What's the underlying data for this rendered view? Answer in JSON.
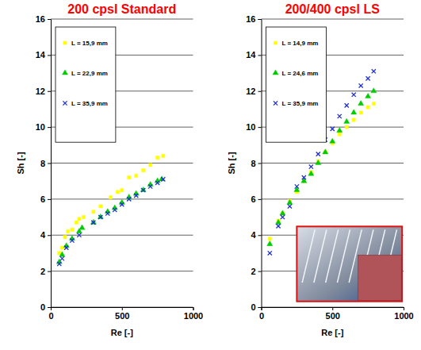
{
  "chart_data": [
    {
      "type": "scatter",
      "title": "200 cpsl Standard",
      "x_label": "Re [-]",
      "y_label": "Sh [-]",
      "xlim": [
        0,
        1000
      ],
      "xticks": [
        0,
        500,
        1000
      ],
      "ylim": [
        0,
        16
      ],
      "yticks": [
        0,
        2,
        4,
        6,
        8,
        10,
        12,
        14,
        16
      ],
      "grid": true,
      "legend": "top-left",
      "series": [
        {
          "name": "L = 15,9 mm",
          "color": "#ffff00",
          "marker": "square",
          "x": [
            60,
            80,
            100,
            120,
            150,
            180,
            200,
            230,
            300,
            350,
            420,
            470,
            500,
            550,
            600,
            650,
            700,
            750,
            790
          ],
          "values": [
            3.0,
            3.3,
            3.9,
            4.2,
            4.3,
            4.7,
            4.9,
            5.0,
            5.3,
            5.6,
            6.1,
            6.4,
            6.5,
            7.2,
            7.3,
            7.6,
            7.9,
            8.3,
            8.4
          ]
        },
        {
          "name": "L = 22,9 mm",
          "color": "#00cc00",
          "marker": "triangle",
          "x": [
            60,
            80,
            110,
            150,
            200,
            220,
            300,
            350,
            400,
            450,
            500,
            550,
            600,
            650,
            700,
            750,
            780
          ],
          "values": [
            2.5,
            2.9,
            3.4,
            3.8,
            4.2,
            4.4,
            4.7,
            5.0,
            5.3,
            5.5,
            5.8,
            6.1,
            6.3,
            6.5,
            6.8,
            7.0,
            7.1
          ]
        },
        {
          "name": "L = 35,9 mm",
          "color": "#1f2fd0",
          "marker": "x",
          "x": [
            60,
            80,
            110,
            150,
            200,
            300,
            350,
            400,
            450,
            500,
            550,
            600,
            650,
            700,
            750,
            790
          ],
          "values": [
            2.4,
            2.7,
            3.3,
            3.7,
            4.0,
            4.7,
            5.0,
            5.2,
            5.4,
            5.7,
            6.0,
            6.2,
            6.5,
            6.7,
            6.9,
            7.1
          ]
        }
      ]
    },
    {
      "type": "scatter",
      "title": "200/400 cpsl LS",
      "x_label": "Re [-]",
      "y_label": "Sh [-]",
      "xlim": [
        0,
        1000
      ],
      "xticks": [
        0,
        500,
        1000
      ],
      "ylim": [
        0,
        16
      ],
      "yticks": [
        0,
        2,
        4,
        6,
        8,
        10,
        12,
        14,
        16
      ],
      "grid": true,
      "legend": "top-left",
      "series": [
        {
          "name": "L = 14,9 mm",
          "color": "#ffff00",
          "marker": "square",
          "x": [
            60,
            120,
            150,
            200,
            250,
            300,
            350,
            400,
            450,
            500,
            550,
            600,
            650,
            700,
            750,
            790
          ],
          "values": [
            3.8,
            4.8,
            5.2,
            5.9,
            6.4,
            7.0,
            7.5,
            8.1,
            8.6,
            9.1,
            9.6,
            10.0,
            10.4,
            10.8,
            11.1,
            11.3
          ]
        },
        {
          "name": "L = 24,6 mm",
          "color": "#00cc00",
          "marker": "triangle",
          "x": [
            60,
            120,
            150,
            200,
            250,
            300,
            350,
            400,
            450,
            500,
            550,
            600,
            650,
            700,
            750,
            790
          ],
          "values": [
            3.5,
            4.7,
            5.2,
            5.8,
            6.5,
            7.0,
            7.4,
            8.0,
            8.6,
            9.2,
            9.8,
            10.3,
            10.8,
            11.3,
            11.7,
            12.0
          ]
        },
        {
          "name": "L = 35,9 mm",
          "color": "#1f2fd0",
          "marker": "x",
          "x": [
            60,
            120,
            150,
            200,
            250,
            300,
            350,
            400,
            450,
            500,
            550,
            600,
            650,
            700,
            750,
            790
          ],
          "values": [
            3.0,
            4.5,
            5.0,
            5.6,
            6.7,
            7.2,
            7.8,
            8.5,
            9.3,
            9.9,
            10.6,
            11.2,
            11.8,
            12.3,
            12.7,
            13.1
          ]
        }
      ]
    }
  ]
}
